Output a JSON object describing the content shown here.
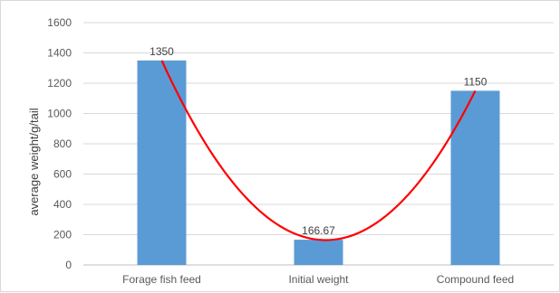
{
  "chart_data": {
    "type": "bar",
    "categories": [
      "Forage fish feed",
      "Initial weight",
      "Compound feed"
    ],
    "values": [
      1350,
      166.67,
      1150
    ],
    "data_labels": [
      "1350",
      "166.67",
      "1150"
    ],
    "title": "",
    "xlabel": "",
    "ylabel": "average weight/g/tail",
    "ylim": [
      0,
      1600
    ],
    "y_ticks": [
      0,
      200,
      400,
      600,
      800,
      1000,
      1200,
      1400,
      1600
    ],
    "grid": true,
    "legend": "none",
    "bar_color": "#5b9bd5",
    "trend_curve": {
      "type": "polynomial",
      "color": "#ff0000",
      "points": [
        {
          "x": 0,
          "y": 1350
        },
        {
          "x": 1,
          "y": 166.67
        },
        {
          "x": 2,
          "y": 1150
        }
      ]
    }
  }
}
